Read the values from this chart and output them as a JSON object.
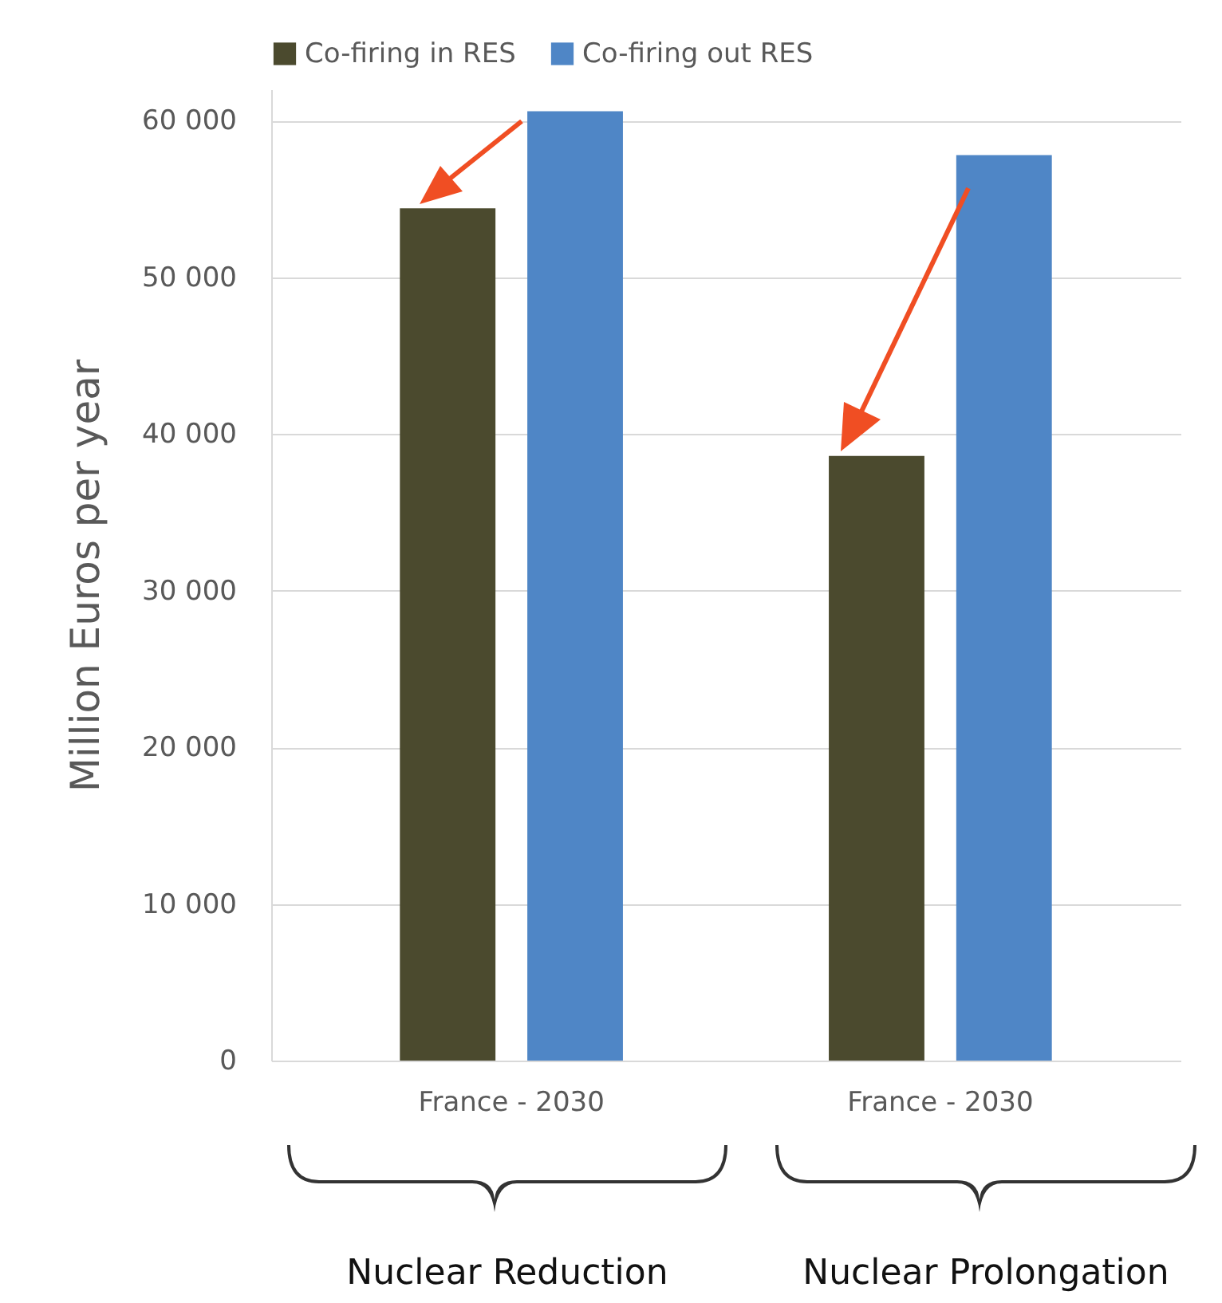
{
  "chart_data": {
    "type": "bar",
    "ylabel": "Million Euros per year",
    "categories": [
      "France - 2030",
      "France - 2030"
    ],
    "series": [
      {
        "name": "Co-firing in RES",
        "color": "#4b4a2e",
        "values": [
          54400,
          38600
        ]
      },
      {
        "name": "Co-firing out RES",
        "color": "#4f86c6",
        "values": [
          60600,
          57800
        ]
      }
    ],
    "ylim": [
      0,
      62000
    ],
    "yticks": [
      0,
      {
        "value": 10000,
        "label": "10 000"
      },
      {
        "value": 20000,
        "label": "20 000"
      },
      {
        "value": 30000,
        "label": "30 000"
      },
      {
        "value": 40000,
        "label": "40 000"
      },
      {
        "value": 50000,
        "label": "50 000"
      },
      {
        "value": 60000,
        "label": "60 000"
      }
    ],
    "grid": "y",
    "legend": "top",
    "annotations": [
      "Nuclear Reduction",
      "Nuclear Prolongation"
    ]
  }
}
